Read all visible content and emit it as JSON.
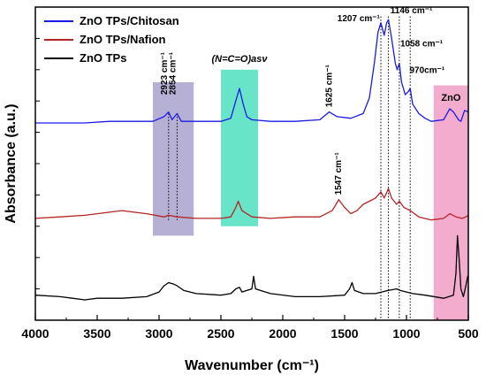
{
  "chart_data": {
    "type": "line",
    "xlabel": "Wavenumber (cm⁻¹)",
    "ylabel": "Absorbance (a.u.)",
    "xlim": [
      4000,
      500
    ],
    "xticks": [
      4000,
      3500,
      3000,
      2500,
      2000,
      1500,
      1000,
      500
    ],
    "ylim": [
      0,
      1
    ],
    "legend_position": "top-left",
    "series": [
      {
        "name": "ZnO TPs/Chitosan",
        "color": "#1a1ae6",
        "points": [
          [
            4000,
            0.63
          ],
          [
            3800,
            0.63
          ],
          [
            3600,
            0.63
          ],
          [
            3400,
            0.635
          ],
          [
            3200,
            0.635
          ],
          [
            3050,
            0.635
          ],
          [
            2960,
            0.65
          ],
          [
            2923,
            0.665
          ],
          [
            2895,
            0.64
          ],
          [
            2854,
            0.66
          ],
          [
            2820,
            0.635
          ],
          [
            2700,
            0.635
          ],
          [
            2500,
            0.635
          ],
          [
            2420,
            0.645
          ],
          [
            2380,
            0.7
          ],
          [
            2350,
            0.74
          ],
          [
            2320,
            0.69
          ],
          [
            2290,
            0.65
          ],
          [
            2250,
            0.64
          ],
          [
            2100,
            0.635
          ],
          [
            1900,
            0.635
          ],
          [
            1700,
            0.64
          ],
          [
            1625,
            0.665
          ],
          [
            1560,
            0.65
          ],
          [
            1450,
            0.645
          ],
          [
            1350,
            0.66
          ],
          [
            1300,
            0.71
          ],
          [
            1260,
            0.82
          ],
          [
            1230,
            0.92
          ],
          [
            1207,
            0.95
          ],
          [
            1180,
            0.91
          ],
          [
            1160,
            0.95
          ],
          [
            1146,
            0.96
          ],
          [
            1120,
            0.9
          ],
          [
            1090,
            0.82
          ],
          [
            1075,
            0.8
          ],
          [
            1058,
            0.82
          ],
          [
            1040,
            0.76
          ],
          [
            1010,
            0.72
          ],
          [
            985,
            0.73
          ],
          [
            970,
            0.74
          ],
          [
            950,
            0.69
          ],
          [
            900,
            0.66
          ],
          [
            850,
            0.645
          ],
          [
            800,
            0.635
          ],
          [
            700,
            0.64
          ],
          [
            650,
            0.675
          ],
          [
            620,
            0.665
          ],
          [
            580,
            0.64
          ],
          [
            560,
            0.635
          ],
          [
            530,
            0.67
          ],
          [
            500,
            0.665
          ]
        ]
      },
      {
        "name": "ZnO TPs/Nafion",
        "color": "#b52424",
        "points": [
          [
            4000,
            0.325
          ],
          [
            3800,
            0.33
          ],
          [
            3600,
            0.335
          ],
          [
            3400,
            0.345
          ],
          [
            3300,
            0.35
          ],
          [
            3200,
            0.345
          ],
          [
            3100,
            0.34
          ],
          [
            2960,
            0.33
          ],
          [
            2923,
            0.335
          ],
          [
            2854,
            0.33
          ],
          [
            2700,
            0.325
          ],
          [
            2500,
            0.325
          ],
          [
            2420,
            0.33
          ],
          [
            2380,
            0.36
          ],
          [
            2360,
            0.38
          ],
          [
            2330,
            0.35
          ],
          [
            2250,
            0.33
          ],
          [
            2100,
            0.325
          ],
          [
            1900,
            0.33
          ],
          [
            1700,
            0.33
          ],
          [
            1600,
            0.35
          ],
          [
            1547,
            0.385
          ],
          [
            1500,
            0.36
          ],
          [
            1450,
            0.34
          ],
          [
            1400,
            0.35
          ],
          [
            1350,
            0.37
          ],
          [
            1300,
            0.38
          ],
          [
            1250,
            0.39
          ],
          [
            1207,
            0.41
          ],
          [
            1180,
            0.39
          ],
          [
            1146,
            0.42
          ],
          [
            1120,
            0.39
          ],
          [
            1080,
            0.37
          ],
          [
            1058,
            0.38
          ],
          [
            1020,
            0.36
          ],
          [
            970,
            0.35
          ],
          [
            900,
            0.33
          ],
          [
            800,
            0.32
          ],
          [
            700,
            0.325
          ],
          [
            650,
            0.34
          ],
          [
            600,
            0.33
          ],
          [
            550,
            0.325
          ],
          [
            520,
            0.33
          ],
          [
            500,
            0.335
          ]
        ]
      },
      {
        "name": "ZnO TPs",
        "color": "#000000",
        "points": [
          [
            4000,
            0.08
          ],
          [
            3800,
            0.075
          ],
          [
            3700,
            0.07
          ],
          [
            3600,
            0.065
          ],
          [
            3500,
            0.07
          ],
          [
            3300,
            0.07
          ],
          [
            3100,
            0.075
          ],
          [
            3000,
            0.09
          ],
          [
            2960,
            0.11
          ],
          [
            2923,
            0.12
          ],
          [
            2880,
            0.115
          ],
          [
            2854,
            0.11
          ],
          [
            2800,
            0.095
          ],
          [
            2700,
            0.085
          ],
          [
            2500,
            0.08
          ],
          [
            2420,
            0.085
          ],
          [
            2380,
            0.1
          ],
          [
            2350,
            0.105
          ],
          [
            2330,
            0.09
          ],
          [
            2250,
            0.1
          ],
          [
            2236,
            0.14
          ],
          [
            2220,
            0.1
          ],
          [
            2100,
            0.085
          ],
          [
            1900,
            0.075
          ],
          [
            1700,
            0.075
          ],
          [
            1500,
            0.08
          ],
          [
            1460,
            0.1
          ],
          [
            1440,
            0.12
          ],
          [
            1420,
            0.095
          ],
          [
            1350,
            0.085
          ],
          [
            1250,
            0.085
          ],
          [
            1150,
            0.095
          ],
          [
            1080,
            0.1
          ],
          [
            1050,
            0.095
          ],
          [
            950,
            0.085
          ],
          [
            850,
            0.08
          ],
          [
            700,
            0.07
          ],
          [
            620,
            0.08
          ],
          [
            600,
            0.15
          ],
          [
            588,
            0.27
          ],
          [
            575,
            0.2
          ],
          [
            560,
            0.1
          ],
          [
            540,
            0.075
          ],
          [
            520,
            0.11
          ],
          [
            505,
            0.14
          ],
          [
            500,
            0.13
          ]
        ]
      }
    ],
    "annotations": {
      "peaks": [
        "2923 cm⁻¹",
        "2854 cm⁻¹",
        "1625 cm⁻¹",
        "1547 cm⁻¹",
        "1207 cm⁻¹",
        "1146 cm⁻¹",
        "1058 cm⁻¹",
        "970cm⁻¹"
      ],
      "box_label_nco": "(N=C=O)asν",
      "box_label_zno": "ZnO"
    },
    "highlight_boxes": [
      {
        "name": "ch-stretch-box",
        "x_range": [
          3050,
          2720
        ],
        "y_range": [
          0.27,
          0.76
        ],
        "color": "#a9a3cc"
      },
      {
        "name": "nco-box",
        "x_range": [
          2500,
          2200
        ],
        "y_range": [
          0.3,
          0.8
        ],
        "color": "#4de0c0"
      },
      {
        "name": "zno-box",
        "x_range": [
          780,
          500
        ],
        "y_range": [
          0.0,
          0.75
        ],
        "color": "#f29ec6"
      }
    ],
    "vertical_markers": [
      1207,
      1146,
      1058,
      970,
      2923,
      2854
    ]
  }
}
